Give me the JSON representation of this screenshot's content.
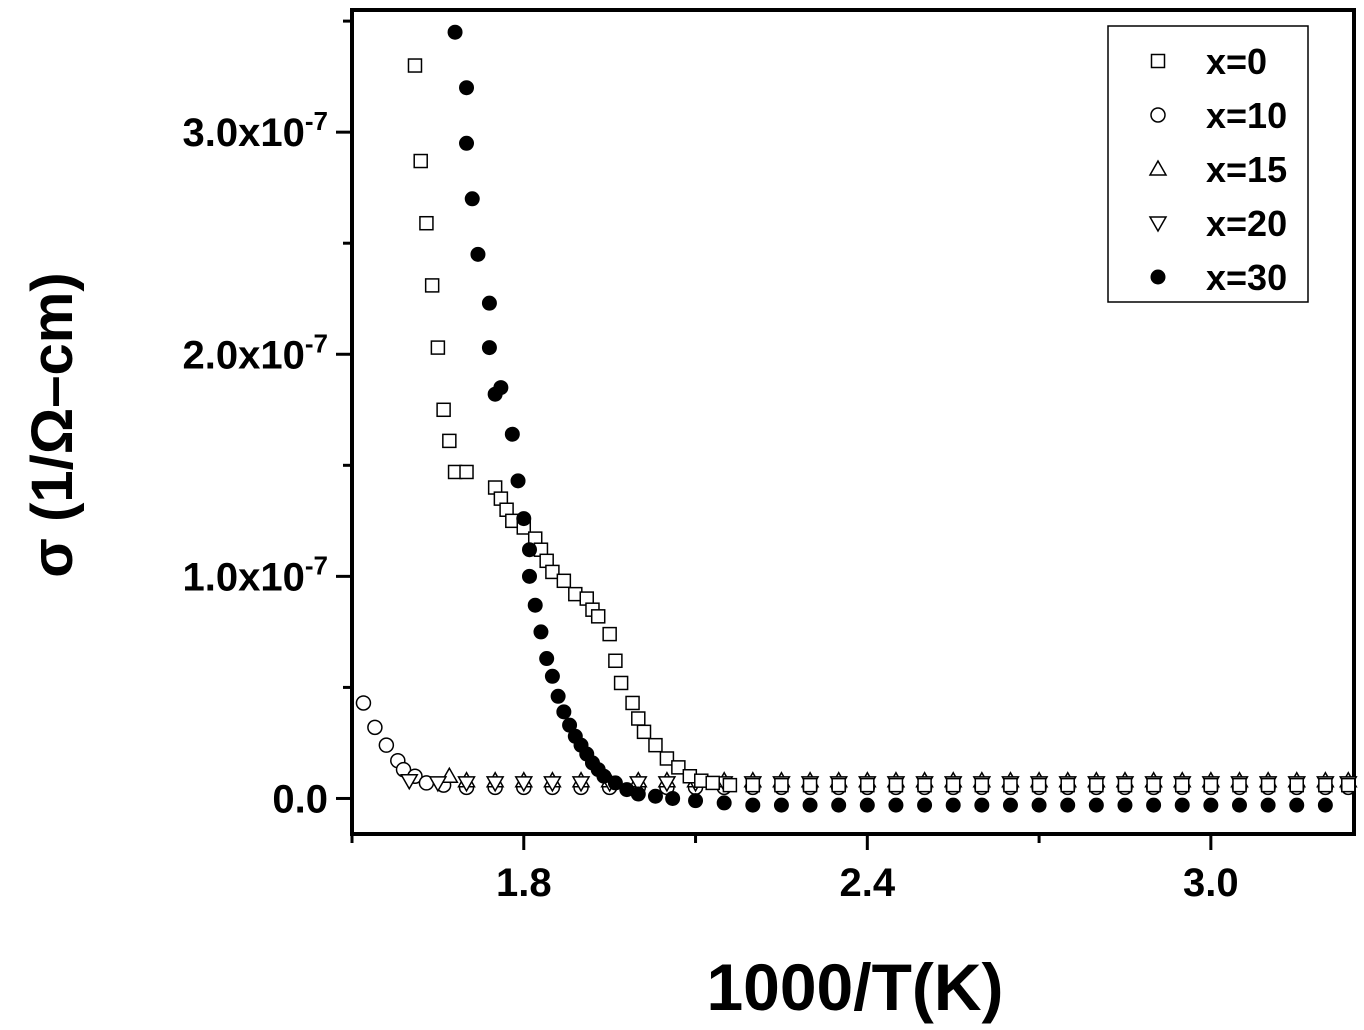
{
  "chart_data": {
    "type": "scatter",
    "xlabel": "1000/T(K)",
    "ylabel": "σ (1/Ω–cm)",
    "xlim": [
      1.5,
      3.25
    ],
    "ylim": [
      -1.6e-08,
      3.55e-07
    ],
    "x_ticks": [
      {
        "value": 1.8,
        "label": "1.8"
      },
      {
        "value": 2.4,
        "label": "2.4"
      },
      {
        "value": 3.0,
        "label": "3.0"
      }
    ],
    "y_ticks": [
      {
        "value": 0.0,
        "base": "0.0",
        "exp": ""
      },
      {
        "value": 1e-07,
        "base": "1.0x10",
        "exp": "-7"
      },
      {
        "value": 2e-07,
        "base": "2.0x10",
        "exp": "-7"
      },
      {
        "value": 3e-07,
        "base": "3.0x10",
        "exp": "-7"
      }
    ],
    "grid": false,
    "legend_position": "top-right",
    "series": [
      {
        "name": "x=0",
        "marker": "square-open",
        "points": [
          [
            1.61,
            3.3e-07
          ],
          [
            1.62,
            2.87e-07
          ],
          [
            1.63,
            2.59e-07
          ],
          [
            1.64,
            2.31e-07
          ],
          [
            1.65,
            2.03e-07
          ],
          [
            1.66,
            1.75e-07
          ],
          [
            1.67,
            1.61e-07
          ],
          [
            1.68,
            1.47e-07
          ],
          [
            1.7,
            1.47e-07
          ],
          [
            1.75,
            1.4e-07
          ],
          [
            1.76,
            1.35e-07
          ],
          [
            1.77,
            1.3e-07
          ],
          [
            1.78,
            1.25e-07
          ],
          [
            1.8,
            1.22e-07
          ],
          [
            1.82,
            1.17e-07
          ],
          [
            1.83,
            1.12e-07
          ],
          [
            1.84,
            1.07e-07
          ],
          [
            1.85,
            1.02e-07
          ],
          [
            1.87,
            9.8e-08
          ],
          [
            1.89,
            9.2e-08
          ],
          [
            1.91,
            9e-08
          ],
          [
            1.92,
            8.5e-08
          ],
          [
            1.93,
            8.2e-08
          ],
          [
            1.95,
            7.4e-08
          ],
          [
            1.96,
            6.2e-08
          ],
          [
            1.97,
            5.2e-08
          ],
          [
            1.99,
            4.3e-08
          ],
          [
            2.0,
            3.6e-08
          ],
          [
            2.01,
            3e-08
          ],
          [
            2.03,
            2.4e-08
          ],
          [
            2.05,
            1.8e-08
          ],
          [
            2.07,
            1.4e-08
          ],
          [
            2.09,
            1e-08
          ],
          [
            2.11,
            8e-09
          ],
          [
            2.13,
            7e-09
          ],
          [
            2.16,
            6e-09
          ],
          [
            2.2,
            6e-09
          ],
          [
            2.25,
            6e-09
          ],
          [
            2.3,
            6e-09
          ],
          [
            2.35,
            6e-09
          ],
          [
            2.4,
            6e-09
          ],
          [
            2.45,
            6e-09
          ],
          [
            2.5,
            6e-09
          ],
          [
            2.55,
            6e-09
          ],
          [
            2.6,
            6e-09
          ],
          [
            2.65,
            6e-09
          ],
          [
            2.7,
            6e-09
          ],
          [
            2.75,
            6e-09
          ],
          [
            2.8,
            6e-09
          ],
          [
            2.85,
            6e-09
          ],
          [
            2.9,
            6e-09
          ],
          [
            2.95,
            6e-09
          ],
          [
            3.0,
            6e-09
          ],
          [
            3.05,
            6e-09
          ],
          [
            3.1,
            6e-09
          ],
          [
            3.15,
            6e-09
          ],
          [
            3.2,
            6e-09
          ],
          [
            3.24,
            6e-09
          ]
        ]
      },
      {
        "name": "x=10",
        "marker": "circle-open",
        "points": [
          [
            1.52,
            4.3e-08
          ],
          [
            1.54,
            3.2e-08
          ],
          [
            1.56,
            2.4e-08
          ],
          [
            1.58,
            1.7e-08
          ],
          [
            1.59,
            1.3e-08
          ],
          [
            1.61,
            1e-08
          ],
          [
            1.63,
            7e-09
          ],
          [
            1.66,
            6e-09
          ],
          [
            1.7,
            5e-09
          ],
          [
            1.75,
            5e-09
          ],
          [
            1.8,
            5e-09
          ],
          [
            1.85,
            5e-09
          ],
          [
            1.9,
            5e-09
          ],
          [
            1.95,
            5e-09
          ],
          [
            2.0,
            5e-09
          ],
          [
            2.05,
            5e-09
          ],
          [
            2.1,
            5e-09
          ],
          [
            2.15,
            5e-09
          ],
          [
            2.2,
            5e-09
          ],
          [
            2.25,
            5e-09
          ],
          [
            2.3,
            5e-09
          ],
          [
            2.35,
            5e-09
          ],
          [
            2.4,
            5e-09
          ],
          [
            2.45,
            5e-09
          ],
          [
            2.5,
            5e-09
          ],
          [
            2.55,
            5e-09
          ],
          [
            2.6,
            5e-09
          ],
          [
            2.65,
            5e-09
          ],
          [
            2.7,
            5e-09
          ],
          [
            2.75,
            5e-09
          ],
          [
            2.8,
            5e-09
          ],
          [
            2.85,
            5e-09
          ],
          [
            2.9,
            5e-09
          ],
          [
            2.95,
            5e-09
          ],
          [
            3.0,
            5e-09
          ],
          [
            3.05,
            5e-09
          ],
          [
            3.1,
            5e-09
          ],
          [
            3.15,
            5e-09
          ],
          [
            3.2,
            5e-09
          ],
          [
            3.24,
            5e-09
          ]
        ]
      },
      {
        "name": "x=15",
        "marker": "triangle-up-open",
        "points": [
          [
            1.67,
            1e-08
          ],
          [
            1.7,
            8e-09
          ],
          [
            1.75,
            8e-09
          ],
          [
            1.8,
            8e-09
          ],
          [
            1.85,
            8e-09
          ],
          [
            1.9,
            8e-09
          ],
          [
            1.95,
            8e-09
          ],
          [
            2.0,
            8e-09
          ],
          [
            2.05,
            8e-09
          ],
          [
            2.1,
            8e-09
          ],
          [
            2.15,
            8e-09
          ],
          [
            2.2,
            8e-09
          ],
          [
            2.25,
            8e-09
          ],
          [
            2.3,
            8e-09
          ],
          [
            2.35,
            8e-09
          ],
          [
            2.4,
            8e-09
          ],
          [
            2.45,
            8e-09
          ],
          [
            2.5,
            8e-09
          ],
          [
            2.55,
            8e-09
          ],
          [
            2.6,
            8e-09
          ],
          [
            2.65,
            8e-09
          ],
          [
            2.7,
            8e-09
          ],
          [
            2.75,
            8e-09
          ],
          [
            2.8,
            8e-09
          ],
          [
            2.85,
            8e-09
          ],
          [
            2.9,
            8e-09
          ],
          [
            2.95,
            8e-09
          ],
          [
            3.0,
            8e-09
          ],
          [
            3.05,
            8e-09
          ],
          [
            3.1,
            8e-09
          ],
          [
            3.15,
            8e-09
          ],
          [
            3.2,
            8e-09
          ],
          [
            3.24,
            8e-09
          ]
        ]
      },
      {
        "name": "x=20",
        "marker": "triangle-down-open",
        "points": [
          [
            1.6,
            8e-09
          ],
          [
            1.65,
            7e-09
          ],
          [
            1.7,
            7e-09
          ],
          [
            1.75,
            7e-09
          ],
          [
            1.8,
            7e-09
          ],
          [
            1.85,
            7e-09
          ],
          [
            1.9,
            7e-09
          ],
          [
            1.95,
            7e-09
          ],
          [
            2.0,
            7e-09
          ],
          [
            2.05,
            7e-09
          ],
          [
            2.1,
            7e-09
          ],
          [
            2.15,
            7e-09
          ],
          [
            2.2,
            7e-09
          ],
          [
            2.25,
            7e-09
          ],
          [
            2.3,
            7e-09
          ],
          [
            2.35,
            7e-09
          ],
          [
            2.4,
            7e-09
          ],
          [
            2.45,
            7e-09
          ],
          [
            2.5,
            7e-09
          ],
          [
            2.55,
            7e-09
          ],
          [
            2.6,
            7e-09
          ],
          [
            2.65,
            7e-09
          ],
          [
            2.7,
            7e-09
          ],
          [
            2.75,
            7e-09
          ],
          [
            2.8,
            7e-09
          ],
          [
            2.85,
            7e-09
          ],
          [
            2.9,
            7e-09
          ],
          [
            2.95,
            7e-09
          ],
          [
            3.0,
            7e-09
          ],
          [
            3.05,
            7e-09
          ],
          [
            3.1,
            7e-09
          ],
          [
            3.15,
            7e-09
          ],
          [
            3.2,
            7e-09
          ],
          [
            3.24,
            7e-09
          ]
        ]
      },
      {
        "name": "x=30",
        "marker": "circle-filled",
        "points": [
          [
            1.68,
            3.45e-07
          ],
          [
            1.7,
            3.2e-07
          ],
          [
            1.7,
            2.95e-07
          ],
          [
            1.71,
            2.7e-07
          ],
          [
            1.72,
            2.45e-07
          ],
          [
            1.74,
            2.23e-07
          ],
          [
            1.74,
            2.03e-07
          ],
          [
            1.75,
            1.82e-07
          ],
          [
            1.76,
            1.85e-07
          ],
          [
            1.78,
            1.64e-07
          ],
          [
            1.79,
            1.43e-07
          ],
          [
            1.8,
            1.26e-07
          ],
          [
            1.81,
            1.12e-07
          ],
          [
            1.81,
            1e-07
          ],
          [
            1.82,
            8.7e-08
          ],
          [
            1.83,
            7.5e-08
          ],
          [
            1.84,
            6.3e-08
          ],
          [
            1.85,
            5.5e-08
          ],
          [
            1.86,
            4.6e-08
          ],
          [
            1.87,
            3.9e-08
          ],
          [
            1.88,
            3.3e-08
          ],
          [
            1.89,
            2.8e-08
          ],
          [
            1.9,
            2.4e-08
          ],
          [
            1.91,
            2e-08
          ],
          [
            1.92,
            1.6e-08
          ],
          [
            1.93,
            1.3e-08
          ],
          [
            1.94,
            1e-08
          ],
          [
            1.96,
            7e-09
          ],
          [
            1.98,
            4e-09
          ],
          [
            2.0,
            2e-09
          ],
          [
            2.03,
            1e-09
          ],
          [
            2.06,
            0.0
          ],
          [
            2.1,
            -1e-09
          ],
          [
            2.15,
            -2e-09
          ],
          [
            2.2,
            -3e-09
          ],
          [
            2.25,
            -3e-09
          ],
          [
            2.3,
            -3e-09
          ],
          [
            2.35,
            -3e-09
          ],
          [
            2.4,
            -3e-09
          ],
          [
            2.45,
            -3e-09
          ],
          [
            2.5,
            -3e-09
          ],
          [
            2.55,
            -3e-09
          ],
          [
            2.6,
            -3e-09
          ],
          [
            2.65,
            -3e-09
          ],
          [
            2.7,
            -3e-09
          ],
          [
            2.75,
            -3e-09
          ],
          [
            2.8,
            -3e-09
          ],
          [
            2.85,
            -3e-09
          ],
          [
            2.9,
            -3e-09
          ],
          [
            2.95,
            -3e-09
          ],
          [
            3.0,
            -3e-09
          ],
          [
            3.05,
            -3e-09
          ],
          [
            3.1,
            -3e-09
          ],
          [
            3.15,
            -3e-09
          ],
          [
            3.2,
            -3e-09
          ]
        ]
      }
    ]
  }
}
